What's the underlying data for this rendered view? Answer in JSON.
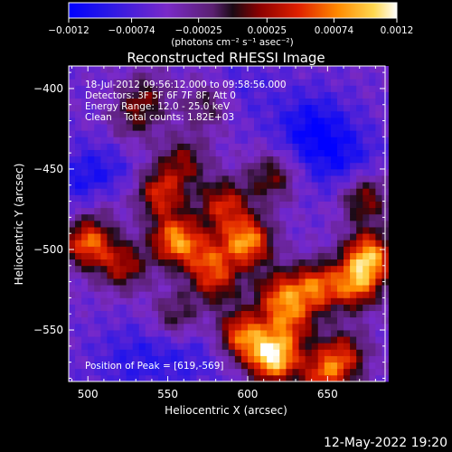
{
  "colorbar": {
    "ticks": [
      "-0.0012",
      "-0.00074",
      "-0.00025",
      "0.00025",
      "0.00074",
      "0.0012"
    ],
    "tick_values": [
      -0.0012,
      -0.00074,
      -0.00025,
      0.00025,
      0.00074,
      0.0012
    ],
    "range": [
      -0.0012,
      0.0012
    ],
    "unit_label": "(photons cm⁻² s⁻¹ asec⁻²)",
    "palette": [
      "#0000ff",
      "#3020e0",
      "#8030c0",
      "#7a2a9a",
      "#3a1a3a",
      "#900000",
      "#e03000",
      "#ff9000",
      "#ffe060",
      "#ffffff"
    ]
  },
  "chart_data": {
    "type": "heatmap",
    "title": "Reconstructed RHESSI Image",
    "xlabel": "Heliocentric X (arcsec)",
    "ylabel": "Heliocentric Y (arcsec)",
    "xlim": [
      488,
      686
    ],
    "ylim": [
      -582,
      -386
    ],
    "xticks": [
      500,
      550,
      600,
      650
    ],
    "yticks": [
      -400,
      -450,
      -500,
      -550
    ],
    "xtick_labels": [
      "500",
      "550",
      "600",
      "650"
    ],
    "ytick_labels": [
      "-400",
      "-450",
      "-500",
      "-550"
    ],
    "info_lines": [
      "18-Jul-2012 09:56:12.000 to 09:58:56.000",
      "Detectors: 3F 5F 6F 7F 8F, Att 0",
      "Energy Range: 12.0 - 25.0 keV",
      "Clean    Total counts: 1.82E+03"
    ],
    "peak_text": "Position of Peak = [619,-569]",
    "peak": [
      619,
      -569
    ],
    "sources": [
      {
        "x": 616,
        "y": -567,
        "amp": 0.0012
      },
      {
        "x": 596,
        "y": -553,
        "amp": 0.0009
      },
      {
        "x": 627,
        "y": -545,
        "amp": 0.0006
      },
      {
        "x": 600,
        "y": -495,
        "amp": 0.00098
      },
      {
        "x": 555,
        "y": -494,
        "amp": 0.00095
      },
      {
        "x": 500,
        "y": -495,
        "amp": 0.0009
      },
      {
        "x": 522,
        "y": -510,
        "amp": 0.0006
      },
      {
        "x": 575,
        "y": -505,
        "amp": 0.0005
      },
      {
        "x": 545,
        "y": -465,
        "amp": 0.00072
      },
      {
        "x": 585,
        "y": -472,
        "amp": 0.0007
      },
      {
        "x": 560,
        "y": -445,
        "amp": 0.0005
      },
      {
        "x": 615,
        "y": -455,
        "amp": 0.0005
      },
      {
        "x": 643,
        "y": -523,
        "amp": 0.0008
      },
      {
        "x": 676,
        "y": -504,
        "amp": 0.001
      },
      {
        "x": 668,
        "y": -522,
        "amp": 0.0008
      },
      {
        "x": 673,
        "y": -468,
        "amp": 0.0006
      },
      {
        "x": 620,
        "y": -528,
        "amp": 0.0007
      },
      {
        "x": 528,
        "y": -420,
        "amp": 0.0003
      },
      {
        "x": 536,
        "y": -405,
        "amp": 0.0004
      },
      {
        "x": 575,
        "y": -410,
        "amp": 0.0004
      },
      {
        "x": 660,
        "y": -565,
        "amp": 0.0006
      },
      {
        "x": 555,
        "y": -542,
        "amp": 0.00045
      },
      {
        "x": 648,
        "y": -578,
        "amp": 0.0007
      },
      {
        "x": 580,
        "y": -520,
        "amp": 0.00055
      },
      {
        "x": 510,
        "y": -470,
        "amp": 0.00035
      }
    ],
    "negative_regions": [
      {
        "x": 505,
        "y": -460,
        "amp": -0.0009
      },
      {
        "x": 640,
        "y": -425,
        "amp": -0.0008
      },
      {
        "x": 660,
        "y": -445,
        "amp": -0.0006
      },
      {
        "x": 545,
        "y": -565,
        "amp": -0.0004
      },
      {
        "x": 520,
        "y": -570,
        "amp": -0.0003
      },
      {
        "x": 575,
        "y": -563,
        "amp": -0.0003
      },
      {
        "x": 595,
        "y": -400,
        "amp": -0.0003
      }
    ]
  },
  "footer": {
    "timestamp": "12-May-2022 19:20"
  }
}
